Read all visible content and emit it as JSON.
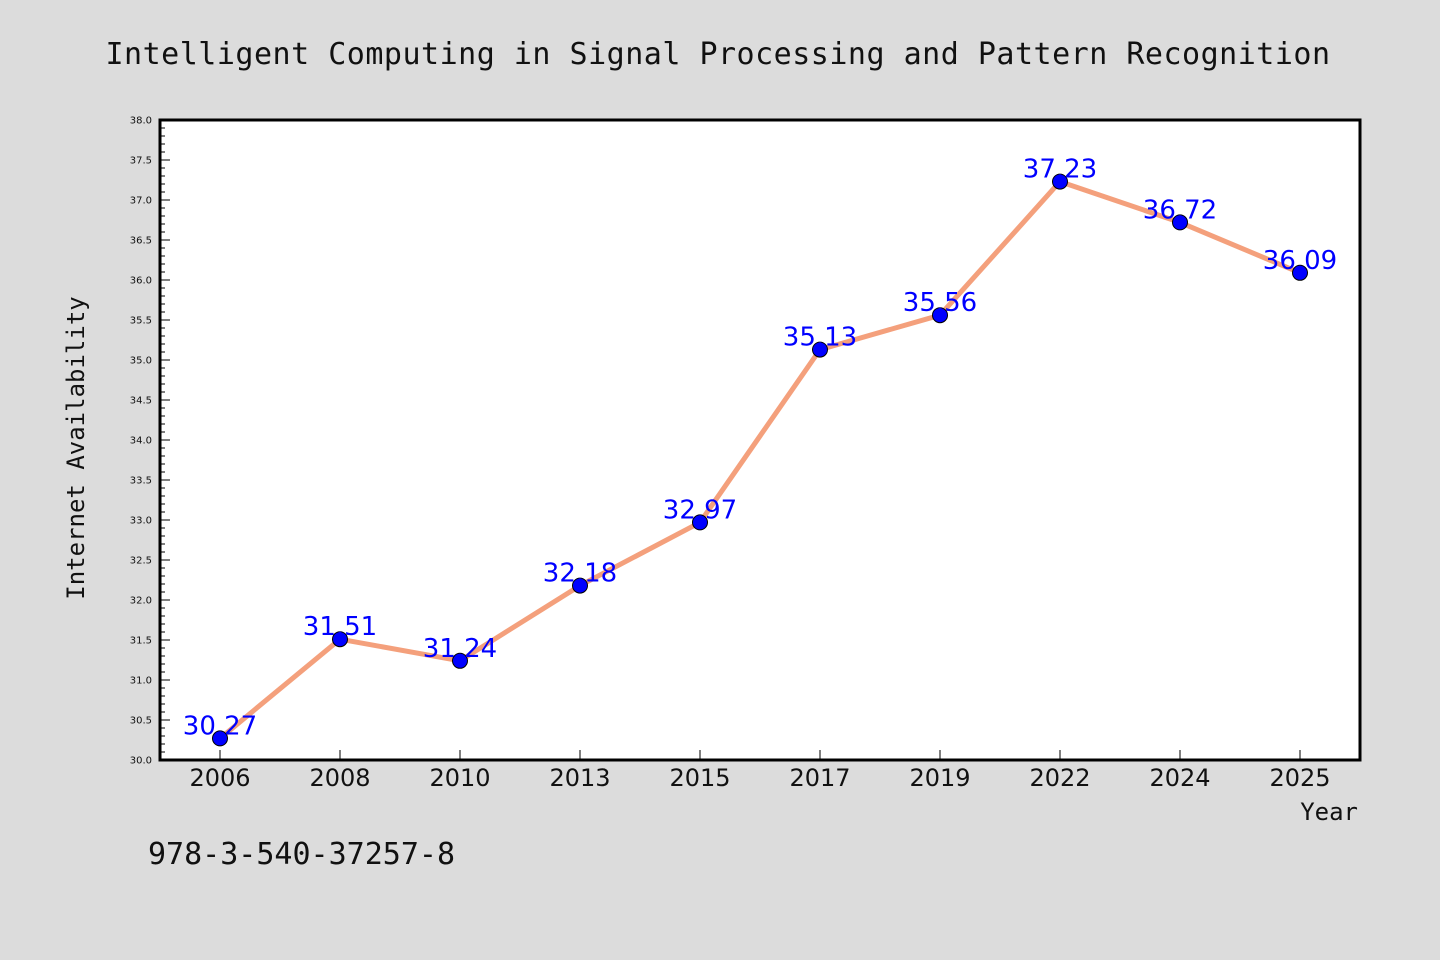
{
  "chart_data": {
    "type": "line",
    "title": "Intelligent Computing in Signal Processing and Pattern Recognition",
    "xlabel": "Year",
    "ylabel": "Internet Availability",
    "categories": [
      "2006",
      "2008",
      "2010",
      "2013",
      "2015",
      "2017",
      "2019",
      "2022",
      "2024",
      "2025"
    ],
    "series": [
      {
        "values": [
          30.27,
          31.51,
          31.24,
          32.18,
          32.97,
          35.13,
          35.56,
          37.23,
          36.72,
          36.09
        ],
        "line_color": "#f4a07c",
        "marker_color": "#0000ff"
      }
    ],
    "data_labels": [
      "30.27",
      "31.51",
      "31.24",
      "32.18",
      "32.97",
      "35.13",
      "35.56",
      "37.23",
      "36.72",
      "36.09"
    ],
    "ylim": [
      30.0,
      38.0
    ],
    "yticks": [
      "30.0",
      "30.5",
      "31.0",
      "31.5",
      "32.0",
      "32.5",
      "33.0",
      "33.5",
      "34.0",
      "34.5",
      "35.0",
      "35.5",
      "36.0",
      "36.5",
      "37.0",
      "37.5",
      "38.0"
    ],
    "grid": false,
    "legend": "none"
  },
  "footer": {
    "isbn": "978-3-540-37257-8"
  },
  "colors": {
    "background": "#dcdcdc",
    "plot_background": "#ffffff",
    "axis": "#000000"
  }
}
